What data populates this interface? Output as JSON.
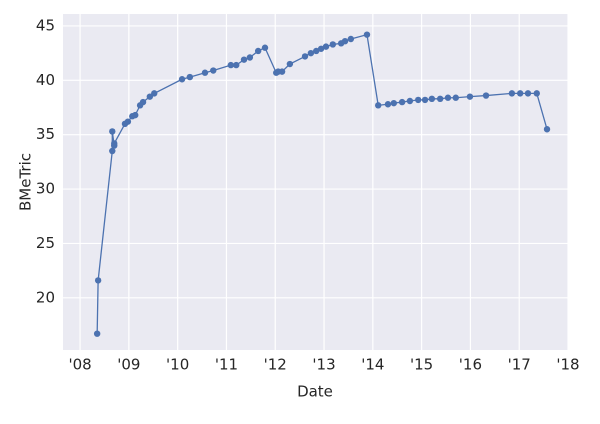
{
  "chart_data": {
    "type": "line",
    "xlabel": "Date",
    "ylabel": "BMeTric",
    "x": [
      2008.35,
      2008.37,
      2008.66,
      2008.66,
      2008.7,
      2008.7,
      2008.92,
      2008.98,
      2009.07,
      2009.13,
      2009.23,
      2009.29,
      2009.43,
      2009.52,
      2010.09,
      2010.25,
      2010.56,
      2010.73,
      2011.09,
      2011.2,
      2011.36,
      2011.48,
      2011.65,
      2011.79,
      2012.02,
      2012.06,
      2012.14,
      2012.3,
      2012.61,
      2012.73,
      2012.84,
      2012.94,
      2013.04,
      2013.18,
      2013.35,
      2013.43,
      2013.55,
      2013.88,
      2014.11,
      2014.31,
      2014.43,
      2014.6,
      2014.76,
      2014.93,
      2015.07,
      2015.21,
      2015.38,
      2015.54,
      2015.7,
      2015.99,
      2016.32,
      2016.85,
      2017.02,
      2017.18,
      2017.36,
      2017.57
    ],
    "series": [
      {
        "name": "BMeTric",
        "color": "#4c72b0",
        "values": [
          16.7,
          21.6,
          33.5,
          35.3,
          34.0,
          34.2,
          36.0,
          36.2,
          36.7,
          36.8,
          37.7,
          38.0,
          38.5,
          38.8,
          40.1,
          40.3,
          40.7,
          40.9,
          41.4,
          41.4,
          41.9,
          42.1,
          42.7,
          43.0,
          40.7,
          40.8,
          40.8,
          41.5,
          42.2,
          42.5,
          42.7,
          42.9,
          43.1,
          43.3,
          43.4,
          43.6,
          43.8,
          44.2,
          37.7,
          37.8,
          37.9,
          38.0,
          38.1,
          38.2,
          38.2,
          38.3,
          38.3,
          38.4,
          38.4,
          38.5,
          38.6,
          38.8,
          38.8,
          38.8,
          38.8,
          35.5
        ]
      }
    ],
    "xlim": [
      2007.65,
      2018
    ],
    "ylim": [
      15.2,
      46.1
    ],
    "xticks": [
      {
        "value": 2008,
        "label": "'08"
      },
      {
        "value": 2009,
        "label": "'09"
      },
      {
        "value": 2010,
        "label": "'10"
      },
      {
        "value": 2011,
        "label": "'11"
      },
      {
        "value": 2012,
        "label": "'12"
      },
      {
        "value": 2013,
        "label": "'13"
      },
      {
        "value": 2014,
        "label": "'14"
      },
      {
        "value": 2015,
        "label": "'15"
      },
      {
        "value": 2016,
        "label": "'16"
      },
      {
        "value": 2017,
        "label": "'17"
      },
      {
        "value": 2018,
        "label": "'18"
      }
    ],
    "yticks": [
      20,
      25,
      30,
      35,
      40,
      45
    ],
    "grid": true
  }
}
